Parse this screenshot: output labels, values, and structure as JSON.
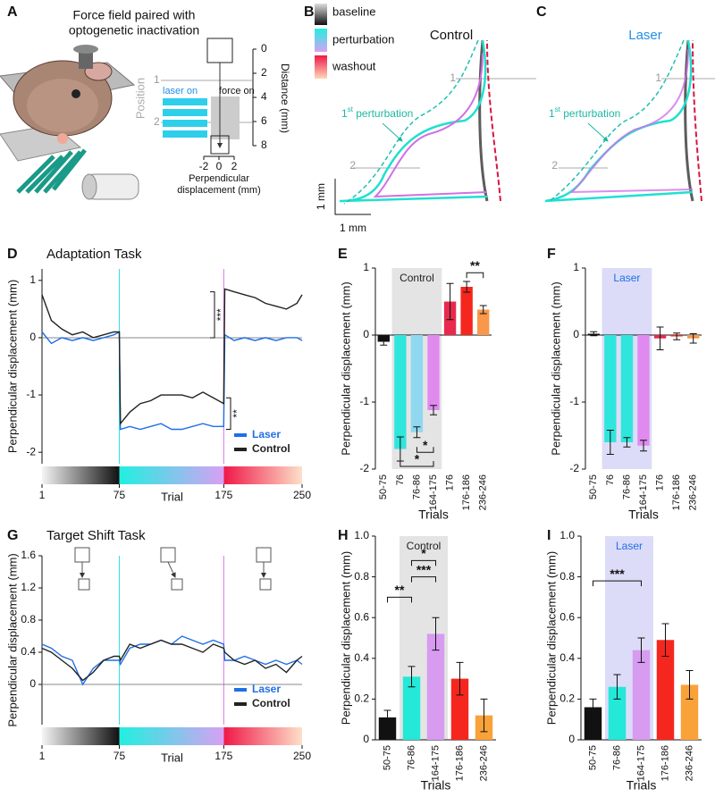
{
  "panel_labels": [
    "A",
    "B",
    "C",
    "D",
    "E",
    "F",
    "G",
    "H",
    "I"
  ],
  "panel_a": {
    "title": [
      "Force field paired with",
      "optogenetic inactivation"
    ],
    "position_label": "Position",
    "positions": [
      "1",
      "2"
    ],
    "laser_on": "laser on",
    "force_on": "force on",
    "distance_label": "Distance (mm)",
    "distance_ticks": [
      0,
      2,
      4,
      6,
      8
    ],
    "x_label": [
      "Perpendicular",
      "displacement (mm)"
    ],
    "x_ticks": [
      -2,
      0,
      2
    ]
  },
  "panel_b": {
    "legend": [
      "baseline",
      "perturbation",
      "washout"
    ],
    "title": "Control",
    "annotation": {
      "ordinal": "1",
      "suffix": "st",
      "text": " perturbation"
    },
    "positions": [
      "1",
      "2"
    ],
    "scale_y": "1 mm",
    "scale_x": "1 mm"
  },
  "panel_c": {
    "title": "Laser",
    "annotation": {
      "ordinal": "1",
      "suffix": "st",
      "text": " perturbation"
    },
    "positions": [
      "1",
      "2"
    ]
  },
  "chart_data": [
    {
      "type": "line",
      "title": "Adaptation Task",
      "x_label": "Trial",
      "y_label": "Perpendicular displacement (mm)",
      "x": [
        1,
        10,
        20,
        30,
        40,
        50,
        60,
        70,
        75,
        76,
        85,
        95,
        105,
        115,
        125,
        135,
        145,
        155,
        165,
        175,
        176,
        185,
        195,
        205,
        215,
        225,
        235,
        245,
        250
      ],
      "xlim": [
        1,
        250
      ],
      "xticks": [
        1,
        75,
        175,
        250
      ],
      "ylim": [
        -2.2,
        1.2
      ],
      "yticks": [
        -2,
        -1,
        0,
        1
      ],
      "series": [
        {
          "name": "Laser",
          "color": "#1f6fe8",
          "values": [
            0.1,
            -0.1,
            0,
            -0.05,
            0,
            -0.05,
            0,
            0.05,
            0.1,
            -1.6,
            -1.55,
            -1.6,
            -1.55,
            -1.5,
            -1.6,
            -1.6,
            -1.55,
            -1.5,
            -1.55,
            -1.55,
            0.05,
            -0.05,
            0,
            -0.05,
            0,
            -0.05,
            0,
            0,
            -0.05
          ]
        },
        {
          "name": "Control",
          "color": "#222222",
          "values": [
            0.75,
            0.3,
            0.15,
            0.05,
            0.1,
            0,
            0.05,
            0.1,
            0.1,
            -1.5,
            -1.3,
            -1.15,
            -1.1,
            -1.0,
            -1.0,
            -1.0,
            -1.05,
            -0.95,
            -1.05,
            -1.15,
            0.85,
            0.8,
            0.75,
            0.7,
            0.6,
            0.55,
            0.5,
            0.6,
            0.75
          ]
        }
      ],
      "annotations": [
        "***",
        "**"
      ]
    },
    {
      "type": "bar",
      "group_label": "Control",
      "x_label": "Trials",
      "y_label": "Perpendicular displacement (mm)",
      "categories": [
        "50-75",
        "76",
        "76-86",
        "164-175",
        "176",
        "176-186",
        "236-246"
      ],
      "values": [
        -0.1,
        -1.7,
        -1.45,
        -1.12,
        0.5,
        0.72,
        0.38
      ],
      "errors": [
        0.05,
        0.18,
        0.08,
        0.07,
        0.27,
        0.08,
        0.06
      ],
      "colors": [
        "#111111",
        "#2ee6dc",
        "#8fd8f0",
        "#e08af0",
        "#e8284e",
        "#f5261e",
        "#f9984a"
      ],
      "ylim": [
        -2,
        1
      ],
      "yticks": [
        -2,
        -1,
        0,
        1
      ],
      "annotations": [
        "**",
        "*",
        "*"
      ]
    },
    {
      "type": "bar",
      "group_label": "Laser",
      "x_label": "Trials",
      "y_label": "Perpendicular displacement (mm)",
      "categories": [
        "50-75",
        "76",
        "76-86",
        "164-175",
        "176",
        "176-186",
        "236-246"
      ],
      "values": [
        0.02,
        -1.6,
        -1.6,
        -1.65,
        -0.05,
        -0.02,
        -0.05
      ],
      "errors": [
        0.03,
        0.18,
        0.07,
        0.08,
        0.17,
        0.05,
        0.07
      ],
      "colors": [
        "#111111",
        "#2ee6dc",
        "#2ee6dc",
        "#e08af0",
        "#e8284e",
        "#f5261e",
        "#f9984a"
      ],
      "ylim": [
        -2,
        1
      ],
      "yticks": [
        -2,
        -1,
        0,
        1
      ]
    },
    {
      "type": "line",
      "title": "Target Shift Task",
      "x_label": "Trial",
      "y_label": "Perpendicular displacement (mm)",
      "x": [
        1,
        10,
        20,
        30,
        40,
        50,
        60,
        70,
        75,
        76,
        85,
        95,
        105,
        115,
        125,
        135,
        145,
        155,
        165,
        175,
        176,
        185,
        195,
        205,
        215,
        225,
        235,
        245,
        250
      ],
      "xlim": [
        1,
        250
      ],
      "xticks": [
        1,
        75,
        175,
        250
      ],
      "ylim": [
        -0.5,
        1.6
      ],
      "yticks": [
        0,
        0.4,
        0.8,
        1.2,
        1.6
      ],
      "series": [
        {
          "name": "Laser",
          "color": "#1f6fe8",
          "values": [
            0.5,
            0.45,
            0.35,
            0.3,
            0.0,
            0.2,
            0.3,
            0.3,
            0.3,
            0.25,
            0.45,
            0.5,
            0.5,
            0.55,
            0.5,
            0.6,
            0.55,
            0.5,
            0.55,
            0.5,
            0.3,
            0.3,
            0.35,
            0.3,
            0.25,
            0.3,
            0.25,
            0.3,
            0.25
          ]
        },
        {
          "name": "Control",
          "color": "#222222",
          "values": [
            0.45,
            0.4,
            0.3,
            0.2,
            0.05,
            0.15,
            0.3,
            0.35,
            0.35,
            0.3,
            0.5,
            0.45,
            0.5,
            0.55,
            0.5,
            0.5,
            0.45,
            0.4,
            0.5,
            0.45,
            0.4,
            0.3,
            0.25,
            0.3,
            0.2,
            0.25,
            0.15,
            0.3,
            0.35
          ]
        }
      ]
    },
    {
      "type": "bar",
      "group_label": "Control",
      "x_label": "Trials",
      "y_label": "Perpendicular displacement (mm)",
      "categories": [
        "50-75",
        "76-86",
        "164-175",
        "176-186",
        "236-246"
      ],
      "values": [
        0.11,
        0.31,
        0.52,
        0.3,
        0.12
      ],
      "errors": [
        0.035,
        0.05,
        0.08,
        0.08,
        0.08
      ],
      "colors": [
        "#111111",
        "#24e8d8",
        "#d79bf0",
        "#f5261e",
        "#f9a23a"
      ],
      "ylim": [
        0,
        1
      ],
      "yticks": [
        0,
        0.2,
        0.4,
        0.6,
        0.8,
        {
          "value": 1,
          "label": "1.0"
        }
      ],
      "annotations": [
        "**",
        "***",
        "*"
      ]
    },
    {
      "type": "bar",
      "group_label": "Laser",
      "x_label": "Trials",
      "y_label": "Perpendicular displacement (mm)",
      "categories": [
        "50-75",
        "76-86",
        "164-175",
        "176-186",
        "236-246"
      ],
      "values": [
        0.16,
        0.26,
        0.44,
        0.49,
        0.27
      ],
      "errors": [
        0.04,
        0.06,
        0.06,
        0.08,
        0.07
      ],
      "colors": [
        "#111111",
        "#24e8d8",
        "#d79bf0",
        "#f5261e",
        "#f9a23a"
      ],
      "ylim": [
        0,
        1
      ],
      "yticks": [
        0,
        0.2,
        0.4,
        0.6,
        0.8,
        {
          "value": 1,
          "label": "1.0"
        }
      ],
      "annotations": [
        "***"
      ]
    }
  ]
}
